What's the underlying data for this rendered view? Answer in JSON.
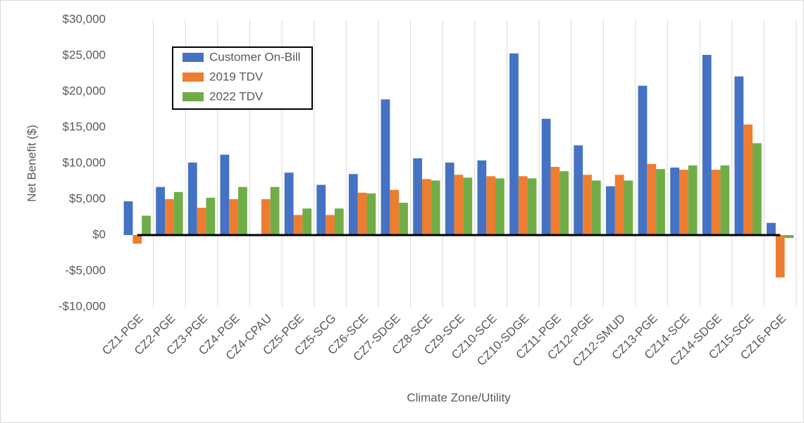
{
  "chart_data": {
    "type": "bar",
    "y_label": "Net Benefit ($)",
    "x_label": "Climate Zone/Utility",
    "categories": [
      "CZ1-PGE",
      "CZ2-PGE",
      "CZ3-PGE",
      "CZ4-PGE",
      "CZ4-CPAU",
      "CZ5-PGE",
      "CZ5-SCG",
      "CZ6-SCE",
      "CZ7-SDGE",
      "CZ8-SCE",
      "CZ9-SCE",
      "CZ10-SCE",
      "CZ10-SDGE",
      "CZ11-PGE",
      "CZ12-PGE",
      "CZ12-SMUD",
      "CZ13-PGE",
      "CZ14-SCE",
      "CZ14-SDGE",
      "CZ15-SCE",
      "CZ16-PGE"
    ],
    "series": [
      {
        "name": "Customer On-Bill",
        "color": "#4472c4",
        "values": [
          4700,
          6700,
          10100,
          11200,
          null,
          8700,
          7000,
          8500,
          18900,
          10700,
          10100,
          10400,
          25300,
          16200,
          12500,
          6800,
          20800,
          9400,
          25100,
          22100,
          1700
        ]
      },
      {
        "name": "2019 TDV",
        "color": "#ed7d31",
        "values": [
          -1200,
          5000,
          3800,
          5000,
          5000,
          2800,
          2800,
          5900,
          6300,
          7800,
          8400,
          8200,
          8200,
          9500,
          8400,
          8400,
          9900,
          9100,
          9100,
          15400,
          -5900
        ]
      },
      {
        "name": "2022 TDV",
        "color": "#70ad47",
        "values": [
          2700,
          6000,
          5200,
          6700,
          6700,
          3700,
          3700,
          5800,
          4500,
          7600,
          8000,
          7900,
          7900,
          8900,
          7600,
          7600,
          9200,
          9700,
          9700,
          12800,
          -400
        ]
      }
    ],
    "ylim": [
      -10000,
      30000
    ],
    "yticks": [
      {
        "value": -10000,
        "label": "-$10,000"
      },
      {
        "value": -5000,
        "label": "-$5,000"
      },
      {
        "value": 0,
        "label": "$0"
      },
      {
        "value": 5000,
        "label": "$5,000"
      },
      {
        "value": 10000,
        "label": "$10,000"
      },
      {
        "value": 15000,
        "label": "$15,000"
      },
      {
        "value": 20000,
        "label": "$20,000"
      },
      {
        "value": 25000,
        "label": "$25,000"
      },
      {
        "value": 30000,
        "label": "$30,000"
      }
    ],
    "legend": "upper left",
    "grid": true
  }
}
